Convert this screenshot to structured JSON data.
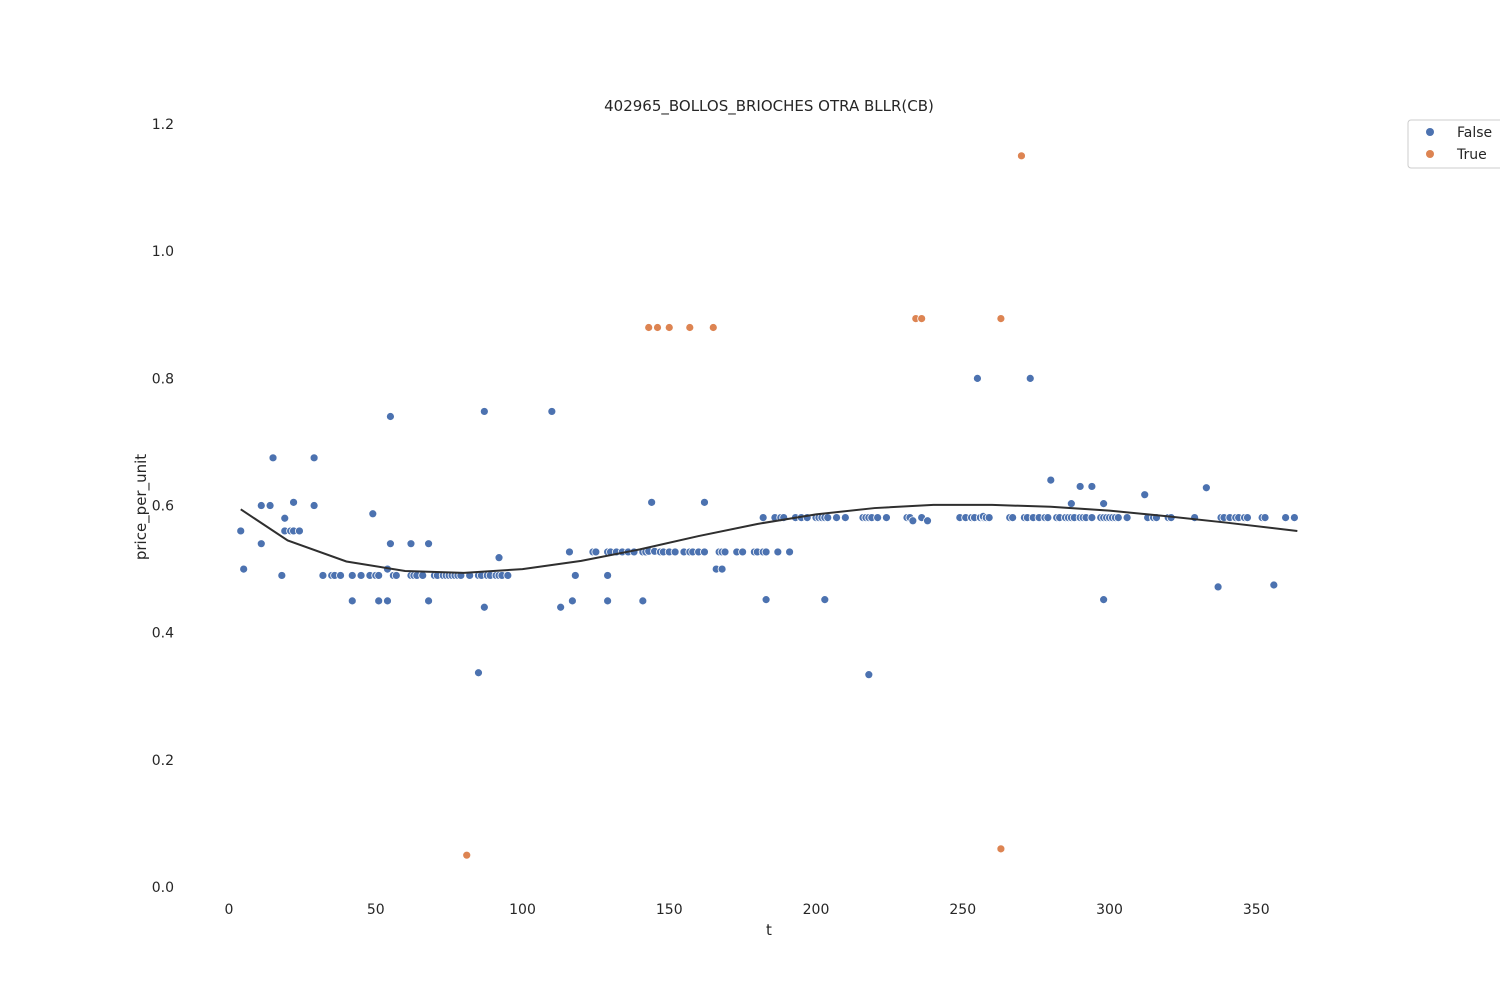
{
  "chart_data": {
    "type": "scatter",
    "title": "402965_BOLLOS_BRIOCHES OTRA BLLR(CB)",
    "xlabel": "t",
    "ylabel": "price_per_unit",
    "xlim": [
      -8,
      380
    ],
    "ylim": [
      0,
      1.2
    ],
    "x_ticks": [
      0,
      50,
      100,
      150,
      200,
      250,
      300,
      350
    ],
    "y_ticks": [
      0.0,
      0.2,
      0.4,
      0.6,
      0.8,
      1.0,
      1.2
    ],
    "x_tick_labels": [
      "0",
      "50",
      "100",
      "150",
      "200",
      "250",
      "300",
      "350"
    ],
    "y_tick_labels": [
      "0.0",
      "0.2",
      "0.4",
      "0.6",
      "0.8",
      "1.0",
      "1.2"
    ],
    "grid": false,
    "legend_position": "top-right",
    "series": [
      {
        "name": "False",
        "color": "#4c72b0",
        "x": [
          4,
          5,
          11,
          11,
          14,
          15,
          18,
          19,
          19,
          21,
          22,
          22,
          24,
          29,
          29,
          32,
          35,
          36,
          38,
          42,
          42,
          45,
          48,
          49,
          50,
          51,
          51,
          54,
          54,
          55,
          55,
          56,
          57,
          62,
          62,
          63,
          64,
          66,
          68,
          68,
          70,
          71,
          73,
          74,
          75,
          76,
          77,
          78,
          79,
          82,
          85,
          85,
          86,
          87,
          87,
          88,
          89,
          91,
          92,
          92,
          93,
          95,
          110,
          113,
          116,
          117,
          118,
          124,
          125,
          129,
          129,
          129,
          130,
          132,
          134,
          136,
          138,
          141,
          141,
          142,
          143,
          144,
          145,
          147,
          148,
          150,
          152,
          155,
          157,
          158,
          160,
          162,
          162,
          166,
          167,
          168,
          168,
          169,
          173,
          175,
          179,
          180,
          182,
          182,
          183,
          183,
          186,
          187,
          188,
          189,
          191,
          193,
          195,
          197,
          200,
          201,
          202,
          203,
          203,
          204,
          207,
          210,
          216,
          217,
          218,
          218,
          219,
          221,
          224,
          231,
          232,
          233,
          236,
          238,
          249,
          251,
          253,
          254,
          254,
          255,
          256,
          257,
          257,
          258,
          259,
          266,
          267,
          271,
          272,
          273,
          274,
          276,
          278,
          279,
          280,
          282,
          283,
          285,
          286,
          287,
          287,
          288,
          290,
          290,
          291,
          292,
          294,
          294,
          297,
          298,
          298,
          298,
          299,
          300,
          301,
          302,
          303,
          306,
          312,
          313,
          315,
          316,
          320,
          321,
          329,
          333,
          337,
          338,
          338,
          339,
          341,
          343,
          344,
          346,
          347,
          352,
          353,
          356,
          360,
          363
        ],
        "y": [
          0.56,
          0.5,
          0.54,
          0.6,
          0.6,
          0.675,
          0.49,
          0.58,
          0.56,
          0.56,
          0.605,
          0.56,
          0.56,
          0.675,
          0.6,
          0.49,
          0.49,
          0.49,
          0.49,
          0.45,
          0.49,
          0.49,
          0.49,
          0.587,
          0.49,
          0.45,
          0.49,
          0.45,
          0.5,
          0.74,
          0.54,
          0.49,
          0.49,
          0.49,
          0.54,
          0.49,
          0.49,
          0.49,
          0.45,
          0.54,
          0.49,
          0.49,
          0.49,
          0.49,
          0.49,
          0.49,
          0.49,
          0.49,
          0.49,
          0.49,
          0.49,
          0.337,
          0.49,
          0.748,
          0.44,
          0.49,
          0.49,
          0.49,
          0.49,
          0.518,
          0.49,
          0.49,
          0.748,
          0.44,
          0.527,
          0.45,
          0.49,
          0.527,
          0.527,
          0.527,
          0.49,
          0.45,
          0.527,
          0.527,
          0.527,
          0.527,
          0.527,
          0.527,
          0.45,
          0.527,
          0.528,
          0.605,
          0.528,
          0.527,
          0.527,
          0.527,
          0.527,
          0.527,
          0.527,
          0.527,
          0.527,
          0.605,
          0.527,
          0.5,
          0.527,
          0.527,
          0.5,
          0.527,
          0.527,
          0.527,
          0.527,
          0.527,
          0.581,
          0.527,
          0.452,
          0.527,
          0.581,
          0.527,
          0.581,
          0.581,
          0.527,
          0.581,
          0.581,
          0.581,
          0.581,
          0.581,
          0.581,
          0.581,
          0.452,
          0.581,
          0.581,
          0.581,
          0.581,
          0.581,
          0.581,
          0.334,
          0.581,
          0.581,
          0.581,
          0.581,
          0.581,
          0.576,
          0.581,
          0.576,
          0.581,
          0.581,
          0.581,
          0.581,
          0.581,
          0.8,
          0.581,
          0.581,
          0.583,
          0.581,
          0.581,
          0.581,
          0.581,
          0.581,
          0.581,
          0.8,
          0.581,
          0.581,
          0.581,
          0.581,
          0.64,
          0.581,
          0.581,
          0.581,
          0.581,
          0.581,
          0.603,
          0.581,
          0.581,
          0.63,
          0.581,
          0.581,
          0.581,
          0.63,
          0.581,
          0.603,
          0.452,
          0.581,
          0.581,
          0.581,
          0.581,
          0.581,
          0.581,
          0.581,
          0.617,
          0.581,
          0.581,
          0.581,
          0.581,
          0.581,
          0.581,
          0.628,
          0.472,
          0.581,
          0.581,
          0.581,
          0.581,
          0.581,
          0.581,
          0.581,
          0.581,
          0.581,
          0.581,
          0.475,
          0.581,
          0.581
        ]
      },
      {
        "name": "True",
        "color": "#dd8452",
        "x": [
          81,
          143,
          146,
          150,
          157,
          165,
          234,
          236,
          263,
          263,
          270
        ],
        "y": [
          0.05,
          0.88,
          0.88,
          0.88,
          0.88,
          0.88,
          0.894,
          0.894,
          0.894,
          0.06,
          1.15
        ]
      }
    ],
    "trend_line": {
      "color": "#2f2f2f",
      "x": [
        4,
        20,
        40,
        60,
        80,
        100,
        120,
        140,
        160,
        180,
        200,
        220,
        240,
        260,
        280,
        300,
        320,
        340,
        364
      ],
      "y": [
        0.594,
        0.545,
        0.512,
        0.497,
        0.494,
        0.5,
        0.513,
        0.531,
        0.552,
        0.571,
        0.586,
        0.596,
        0.601,
        0.601,
        0.598,
        0.592,
        0.583,
        0.573,
        0.56
      ]
    }
  }
}
